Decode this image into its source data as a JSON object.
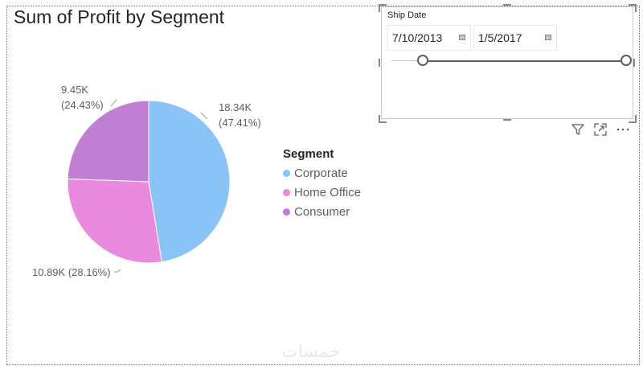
{
  "visual": {
    "title": "Sum of Profit by Segment"
  },
  "chart_data": {
    "type": "pie",
    "title": "Sum of Profit by Segment",
    "legend_title": "Segment",
    "legend_position": "right",
    "slices": [
      {
        "name": "Corporate",
        "value": 18.34,
        "label": "18.34K",
        "percent": "(47.41%)",
        "color": "#8ac3f6"
      },
      {
        "name": "Home Office",
        "value": 10.89,
        "label": "10.89K (28.16%)",
        "percent": "",
        "color": "#ea8ade"
      },
      {
        "name": "Consumer",
        "value": 9.45,
        "label": "9.45K",
        "percent": "(24.43%)",
        "color": "#c27ed3"
      }
    ]
  },
  "slicer": {
    "title": "Ship Date",
    "start_date": "7/10/2013",
    "end_date": "1/5/2017"
  },
  "toolbar": {
    "icons": [
      "filter-icon",
      "focus-mode-icon",
      "more-options-icon"
    ]
  },
  "watermark": "خمسات"
}
